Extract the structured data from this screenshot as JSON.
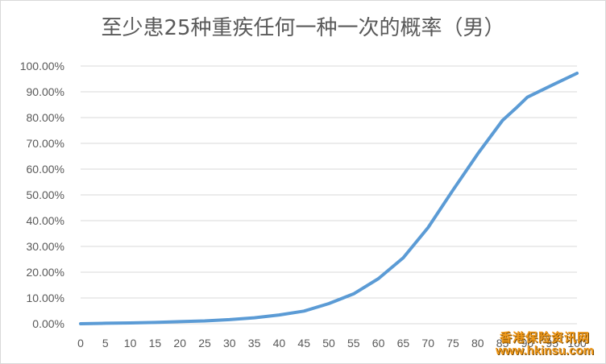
{
  "chart_data": {
    "type": "line",
    "title": "至少患25种重疾任何一种一次的概率（男）",
    "xlabel": "",
    "ylabel": "",
    "x_ticks": [
      "0",
      "5",
      "10",
      "15",
      "20",
      "25",
      "30",
      "35",
      "40",
      "45",
      "50",
      "55",
      "60",
      "65",
      "70",
      "75",
      "80",
      "85",
      "90",
      "95",
      "100"
    ],
    "y_ticks": [
      "0.00%",
      "10.00%",
      "20.00%",
      "30.00%",
      "40.00%",
      "50.00%",
      "60.00%",
      "70.00%",
      "80.00%",
      "90.00%",
      "100.00%"
    ],
    "xlim": [
      0,
      100
    ],
    "ylim": [
      0,
      100
    ],
    "grid": "horizontal",
    "legend": "none",
    "series": [
      {
        "color": "#5b9bd5",
        "x": [
          0,
          5,
          10,
          15,
          20,
          25,
          30,
          35,
          40,
          45,
          50,
          55,
          60,
          65,
          70,
          75,
          80,
          85,
          88,
          90,
          95,
          100
        ],
        "y": [
          0.0,
          0.2,
          0.3,
          0.5,
          0.8,
          1.1,
          1.6,
          2.3,
          3.4,
          4.9,
          7.8,
          11.6,
          17.5,
          25.6,
          37.3,
          51.8,
          65.9,
          78.9,
          84.2,
          87.9,
          92.6,
          97.2
        ]
      }
    ]
  },
  "watermark": {
    "name": "香港保险资讯网",
    "url": "www.hkinsu.com"
  }
}
